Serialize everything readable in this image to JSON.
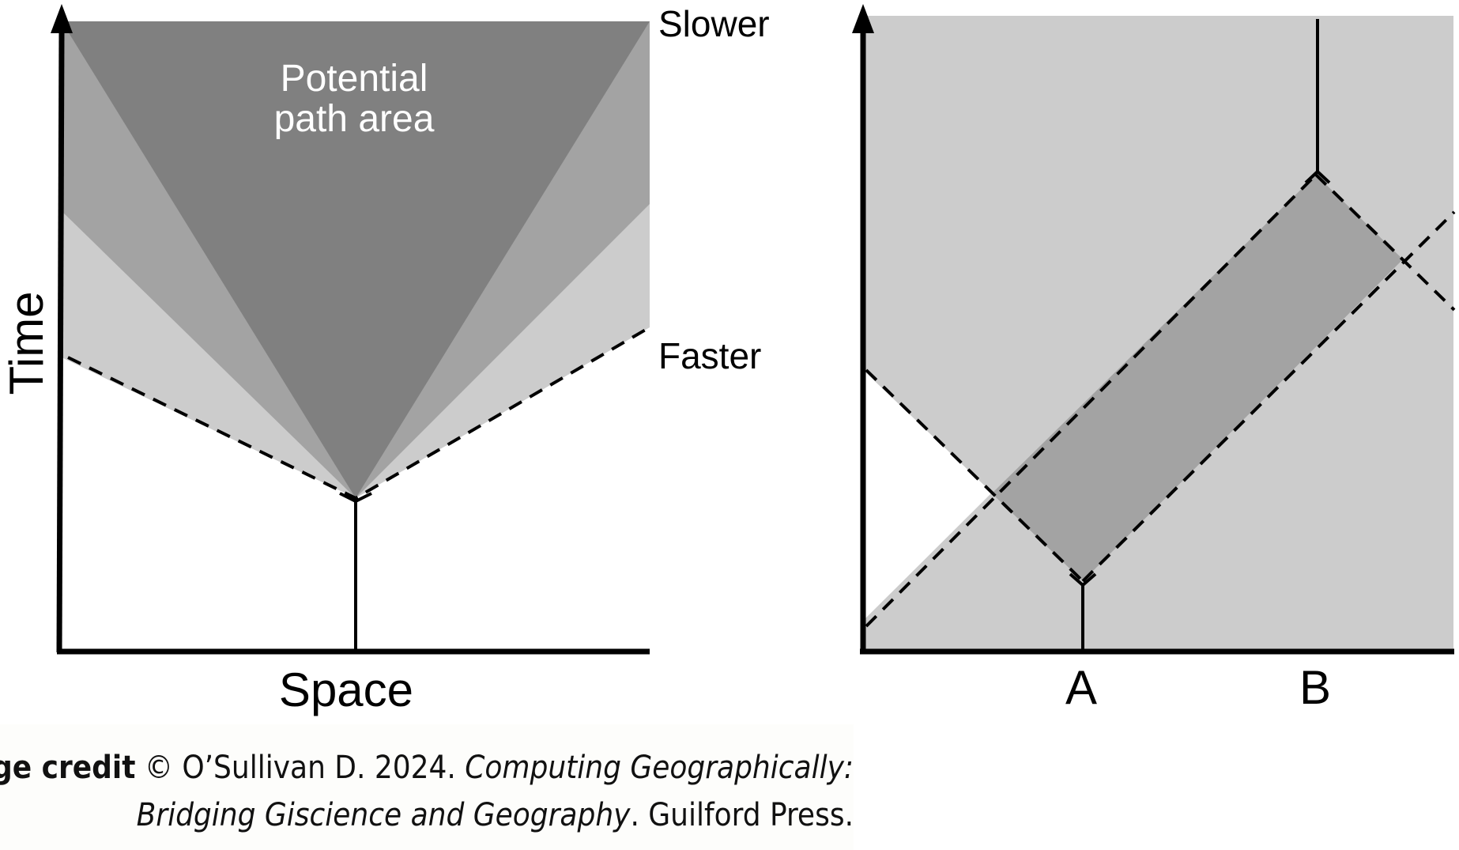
{
  "left_diagram": {
    "y_axis_label": "Time",
    "x_axis_label": "Space",
    "center_label_line1": "Potential",
    "center_label_line2": "path area",
    "upper_right_label": "Slower",
    "lower_right_label": "Faster",
    "colors": {
      "dark": "#808080",
      "medium": "#a3a3a3",
      "light": "#cccccc"
    }
  },
  "right_diagram": {
    "tick_label_a": "A",
    "tick_label_b": "B",
    "colors": {
      "background": "#cccccc",
      "overlap": "#a3a3a3"
    }
  },
  "credit": {
    "bold": "Image credit",
    "rest_line1": "© O’Sullivan D. 2024. ",
    "italic_line1": "Computing Geographically:",
    "italic_line2": "Bridging Giscience and Geography",
    "rest_line2": ". Guilford Press."
  }
}
